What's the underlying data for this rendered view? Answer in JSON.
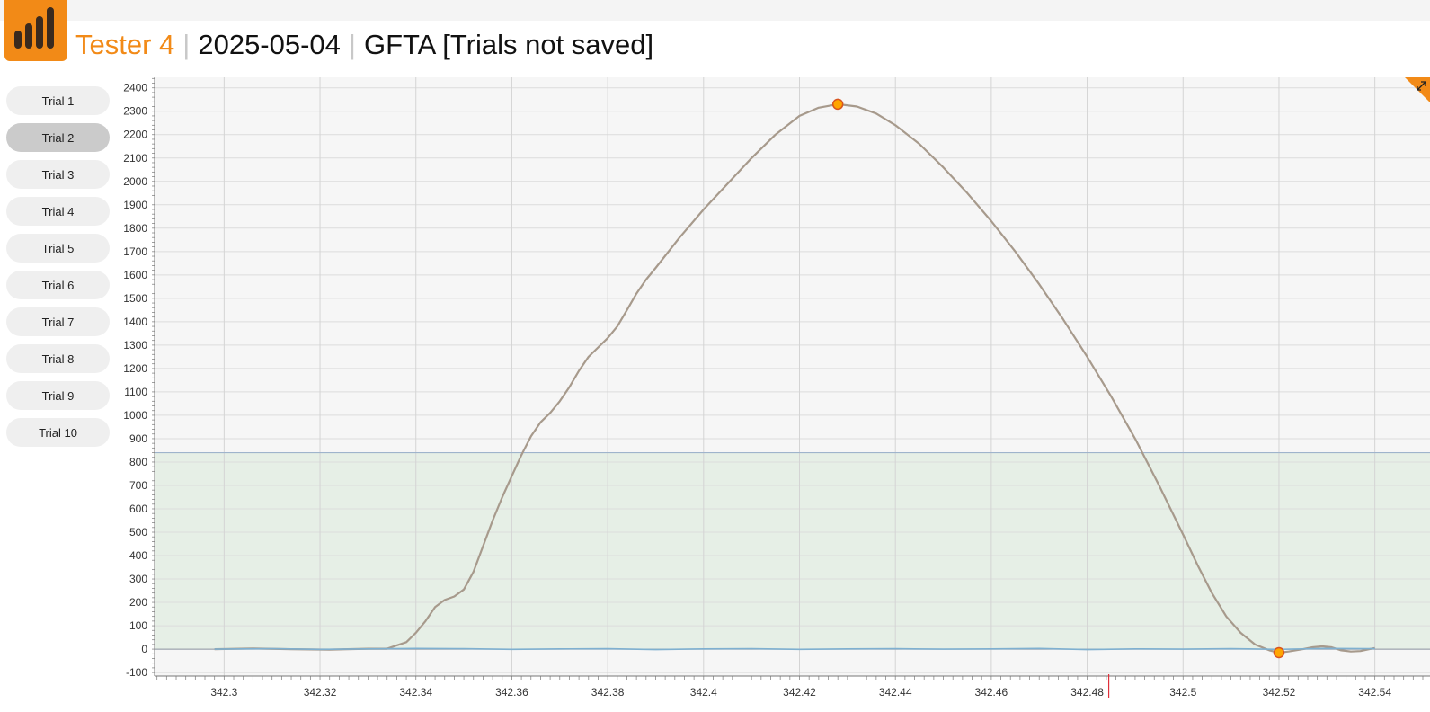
{
  "header": {
    "tester": "Tester 4",
    "date": "2025-05-04",
    "test": "GFTA [Trials not saved]",
    "logo_icon": "bar-chart-logo-icon"
  },
  "colors": {
    "accent": "#f28a17",
    "force_line": "#a79a8c",
    "baseline_line": "#7fb0d0",
    "threshold_line": "#9fb4cc",
    "threshold_zone": "#e6efe6",
    "marker_fill": "#ffa500",
    "marker_stroke": "#d9541e",
    "cursor_line": "#e0303a"
  },
  "sidebar": {
    "active_index": 1,
    "items": [
      {
        "label": "Trial 1"
      },
      {
        "label": "Trial 2"
      },
      {
        "label": "Trial 3"
      },
      {
        "label": "Trial 4"
      },
      {
        "label": "Trial 5"
      },
      {
        "label": "Trial 6"
      },
      {
        "label": "Trial 7"
      },
      {
        "label": "Trial 8"
      },
      {
        "label": "Trial 9"
      },
      {
        "label": "Trial 10"
      }
    ]
  },
  "chart_data": {
    "type": "line",
    "title": "",
    "xlabel": "",
    "ylabel": "",
    "xlim": [
      342.2855,
      342.5515
    ],
    "ylim": [
      -115,
      2445
    ],
    "x_ticks": [
      "342.3",
      "342.32",
      "342.34",
      "342.36",
      "342.38",
      "342.4",
      "342.42",
      "342.44",
      "342.46",
      "342.48",
      "342.5",
      "342.52",
      "342.54"
    ],
    "y_ticks": [
      "-100",
      "0",
      "100",
      "200",
      "300",
      "400",
      "500",
      "600",
      "700",
      "800",
      "900",
      "1000",
      "1100",
      "1200",
      "1300",
      "1400",
      "1500",
      "1600",
      "1700",
      "1800",
      "1900",
      "2000",
      "2100",
      "2200",
      "2300",
      "2400"
    ],
    "grid": true,
    "legend": "none",
    "threshold": 840,
    "cursor_x": 342.4845,
    "series": [
      {
        "x": [
          342.298,
          342.306,
          342.314,
          342.322,
          342.33,
          342.334,
          342.338,
          342.34,
          342.342,
          342.344,
          342.346,
          342.348,
          342.35,
          342.352,
          342.354,
          342.356,
          342.358,
          342.36,
          342.362,
          342.364,
          342.366,
          342.368,
          342.37,
          342.372,
          342.374,
          342.376,
          342.378,
          342.38,
          342.382,
          342.384,
          342.386,
          342.388,
          342.39,
          342.395,
          342.4,
          342.405,
          342.41,
          342.415,
          342.42,
          342.424,
          342.428,
          342.432,
          342.436,
          342.44,
          342.445,
          342.45,
          342.455,
          342.46,
          342.465,
          342.47,
          342.475,
          342.48,
          342.485,
          342.49,
          342.495,
          342.5,
          342.503,
          342.506,
          342.509,
          342.512,
          342.515,
          342.518,
          342.52,
          342.522,
          342.525,
          342.527,
          342.529,
          342.531,
          342.533,
          342.535,
          342.537,
          342.54
        ],
        "values": [
          0,
          3,
          0,
          -2,
          2,
          2,
          30,
          70,
          120,
          180,
          210,
          225,
          255,
          330,
          440,
          550,
          650,
          740,
          830,
          910,
          970,
          1010,
          1060,
          1120,
          1190,
          1250,
          1290,
          1330,
          1380,
          1450,
          1520,
          1580,
          1630,
          1760,
          1880,
          1990,
          2100,
          2200,
          2280,
          2315,
          2330,
          2320,
          2290,
          2240,
          2160,
          2060,
          1950,
          1830,
          1700,
          1560,
          1410,
          1250,
          1080,
          900,
          700,
          490,
          360,
          240,
          140,
          70,
          20,
          -5,
          -15,
          -10,
          0,
          8,
          12,
          8,
          -5,
          -10,
          -8,
          5
        ]
      },
      {
        "x": [
          342.298,
          342.31,
          342.32,
          342.33,
          342.34,
          342.35,
          342.36,
          342.37,
          342.38,
          342.39,
          342.4,
          342.41,
          342.42,
          342.43,
          342.44,
          342.45,
          342.46,
          342.47,
          342.48,
          342.49,
          342.5,
          342.51,
          342.52,
          342.53,
          342.54
        ],
        "values": [
          0,
          2,
          -1,
          1,
          3,
          2,
          -1,
          1,
          2,
          -2,
          1,
          2,
          -1,
          1,
          2,
          0,
          1,
          3,
          -2,
          1,
          0,
          2,
          -1,
          3,
          2
        ]
      }
    ],
    "markers": [
      {
        "x": 342.428,
        "y": 2330
      },
      {
        "x": 342.52,
        "y": -15
      }
    ]
  }
}
